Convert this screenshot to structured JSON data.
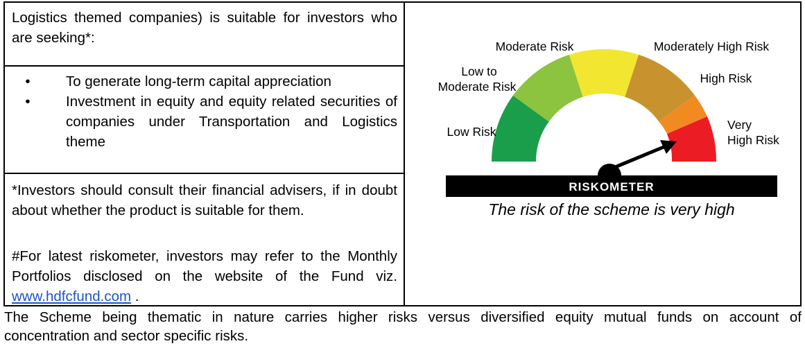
{
  "left_column": {
    "intro_text": "Logistics themed companies) is suitable for investors who are seeking*:",
    "bullets": [
      "To generate long-term capital appreciation",
      "Investment in equity and equity related securities of companies under Transportation and Logistics theme"
    ],
    "bullet_char": "•",
    "disclaimer": "*Investors should consult their financial advisers, if in doubt about whether the product is suitable for them.",
    "latest_prefix": "#For latest riskometer, investors may refer to the Monthly Portfolios disclosed on the website of the Fund viz.",
    "website_link": "www.hdfcfund.com",
    "latest_suffix": "."
  },
  "riskometer": {
    "labels": {
      "low": "Low Risk",
      "low_to_moderate_1": "Low to",
      "low_to_moderate_2": "Moderate Risk",
      "moderate": "Moderate Risk",
      "moderately_high": "Moderately High Risk",
      "high": "High Risk",
      "very_high_1": "Very",
      "very_high_2": "High Risk"
    },
    "banner": "RISKOMETER",
    "caption": "The risk of the scheme is very high",
    "selected_level": "Very High Risk",
    "colors": {
      "low": "#1b9e4b",
      "low_to_moderate": "#8cc43f",
      "moderate": "#f2e630",
      "moderately_high": "#c8922f",
      "high": "#f28a22",
      "very_high": "#ec1c24",
      "banner": "#000000",
      "needle": "#000000"
    }
  },
  "footer": {
    "line1": "The Scheme being thematic in nature carries higher risks versus diversified equity mutual funds on account of",
    "line2": "concentration and sector specific risks."
  }
}
